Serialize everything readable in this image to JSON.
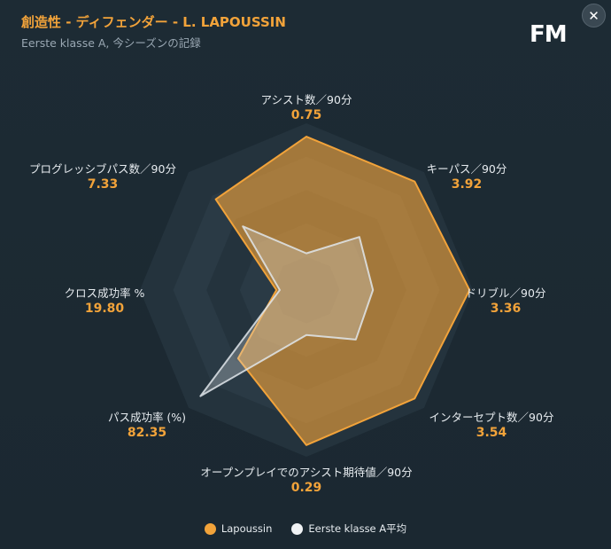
{
  "header": {
    "title": "創造性 - ディフェンダー - L. LAPOUSSIN",
    "subtitle": "Eerste klasse A, 今シーズンの記録",
    "logo_text": "FM",
    "close_icon": "close-icon"
  },
  "colors": {
    "player": "#f2a33a",
    "average": "#d8dde2",
    "background": "#1c2a33"
  },
  "chart_data": {
    "type": "radar",
    "axes": [
      {
        "name": "アシスト数／90分",
        "value": "0.75"
      },
      {
        "name": "キーパス／90分",
        "value": "3.92"
      },
      {
        "name": "ドリブル／90分",
        "value": "3.36"
      },
      {
        "name": "インターセプト数／90分",
        "value": "3.54"
      },
      {
        "name": "オープンプレイでのアシスト期待値／90分",
        "value": "0.29"
      },
      {
        "name": "パス成功率 (%)",
        "value": "82.35"
      },
      {
        "name": "クロス成功率 %",
        "value": "19.80"
      },
      {
        "name": "プログレッシブパス数／90分",
        "value": "7.33"
      }
    ],
    "series": [
      {
        "name": "Lapoussin",
        "percentiles": [
          0.92,
          0.92,
          0.98,
          0.92,
          0.93,
          0.58,
          0.18,
          0.77
        ]
      },
      {
        "name": "Eerste klasse A平均",
        "percentiles": [
          0.22,
          0.45,
          0.4,
          0.42,
          0.27,
          0.9,
          0.16,
          0.54
        ]
      }
    ],
    "rings": 5,
    "legend_position": "bottom-center"
  }
}
